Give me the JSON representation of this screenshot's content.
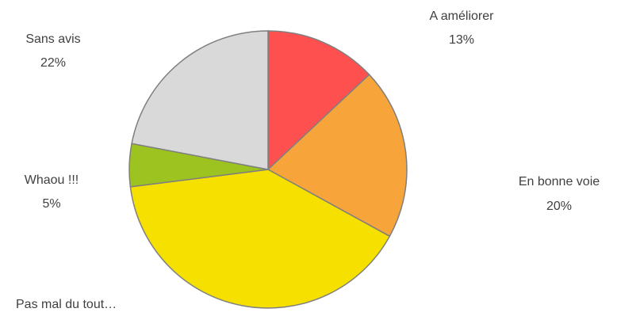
{
  "chart_data": {
    "type": "pie",
    "title": "",
    "slices": [
      {
        "label": "A améliorer",
        "value": 13,
        "display": "13%",
        "color": "#ff5050"
      },
      {
        "label": "En bonne voie",
        "value": 20,
        "display": "20%",
        "color": "#f7a43a"
      },
      {
        "label": "Pas mal du tout…",
        "value": 40,
        "display": "",
        "color": "#f5e000"
      },
      {
        "label": "Whaou !!!",
        "value": 5,
        "display": "5%",
        "color": "#9dc320"
      },
      {
        "label": "Sans avis",
        "value": 22,
        "display": "22%",
        "color": "#d9d9d9"
      }
    ]
  }
}
